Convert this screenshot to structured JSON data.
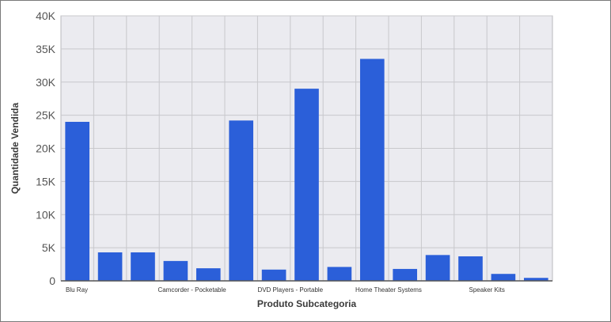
{
  "chart_data": {
    "type": "bar",
    "title": "",
    "xlabel": "Produto Subcategoria",
    "ylabel": "Quantidade Vendida",
    "ylim": [
      0,
      40000
    ],
    "y_ticks": [
      0,
      5000,
      10000,
      15000,
      20000,
      25000,
      30000,
      35000,
      40000
    ],
    "y_tick_labels": [
      "0",
      "5K",
      "10K",
      "15K",
      "20K",
      "25K",
      "30K",
      "35K",
      "40K"
    ],
    "categories": [
      "Blu Ray",
      "",
      "",
      "Camcorder - Pocketable",
      "",
      "",
      "DVD Players - Portable",
      "",
      "",
      "Home Theater Systems",
      "",
      "",
      "Speaker Kits",
      "",
      ""
    ],
    "values": [
      24000,
      4300,
      4300,
      3000,
      1900,
      24200,
      1700,
      29000,
      2100,
      33500,
      1800,
      3900,
      3700,
      1050,
      450
    ],
    "grid": true,
    "legend": "none",
    "bar_color": "#2b5fd9",
    "plot_background": "#ebebf0",
    "grid_color": "#c8c8cc"
  }
}
